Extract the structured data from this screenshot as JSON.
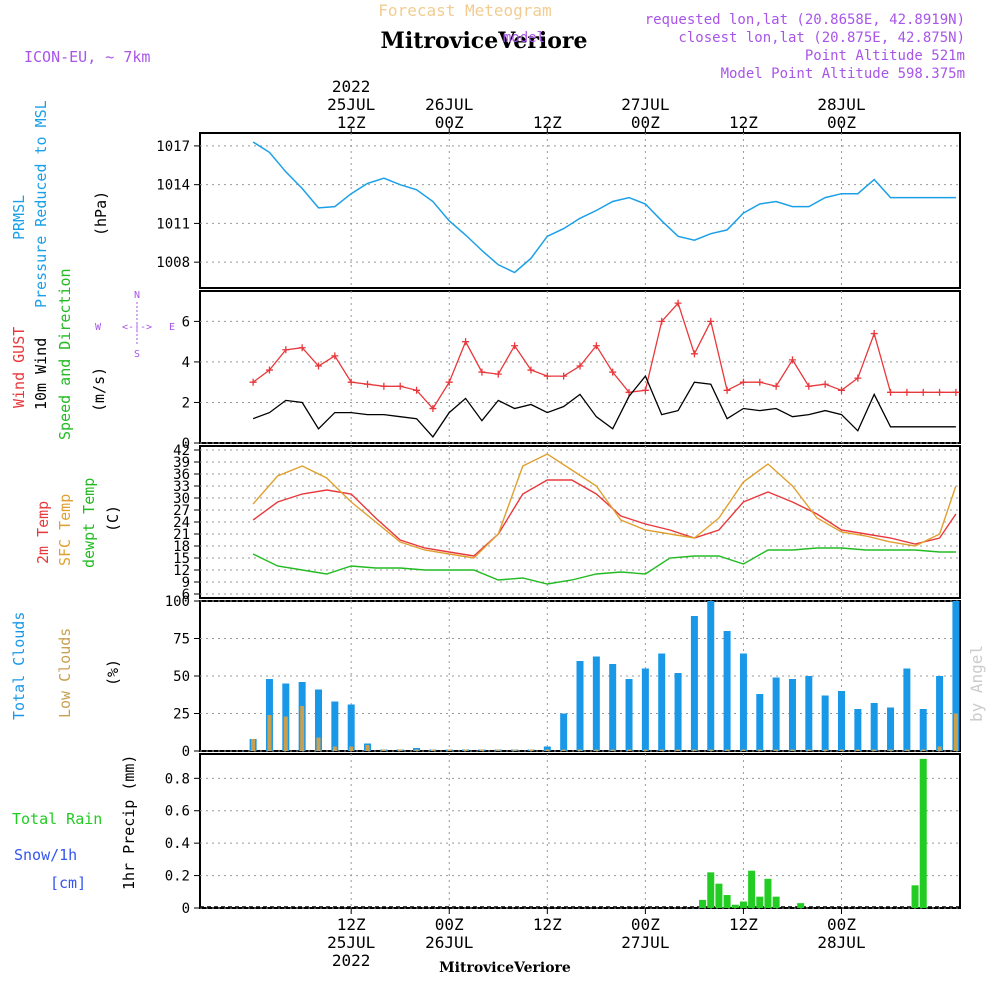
{
  "header": {
    "subtitle": "Forecast Meteogram",
    "location": "MitroviceVeriore",
    "model": "ICON-EU, ~ 7km",
    "requested": "requested lon,lat (20.8658E, 42.8919N)",
    "closest": "closest lon,lat (20.875E, 42.875N)",
    "closest_prefix": "model",
    "altitude": "Point Altitude 521m",
    "model_altitude": "Model Point Altitude 598.375m",
    "footer_location": "MitroviceVeriore",
    "watermark": "by Angel"
  },
  "colors": {
    "pressure": "#1aa0e8",
    "gust": "#e8383c",
    "wind": "#000000",
    "direction_label": "#22bb22",
    "temp2m": "#e8383c",
    "sfc": "#e0a030",
    "dewpt": "#22bb22",
    "cloud_total": "#1a98e8",
    "cloud_low": "#c8a050",
    "rain": "#22cc22",
    "snow": "#3355ee",
    "meta": "#a855e8"
  },
  "time_axis": {
    "top": [
      {
        "h": 12,
        "line1": "2022",
        "line2": "25JUL",
        "line3": "12Z"
      },
      {
        "h": 24,
        "line1": "",
        "line2": "26JUL",
        "line3": "00Z"
      },
      {
        "h": 36,
        "line1": "",
        "line2": "",
        "line3": "12Z"
      },
      {
        "h": 48,
        "line1": "",
        "line2": "27JUL",
        "line3": "00Z"
      },
      {
        "h": 60,
        "line1": "",
        "line2": "",
        "line3": "12Z"
      },
      {
        "h": 72,
        "line1": "",
        "line2": "28JUL",
        "line3": "00Z"
      }
    ],
    "bottom": [
      {
        "h": 12,
        "line1": "12Z",
        "line2": "25JUL",
        "line3": "2022"
      },
      {
        "h": 24,
        "line1": "00Z",
        "line2": "26JUL",
        "line3": ""
      },
      {
        "h": 36,
        "line1": "12Z",
        "line2": "",
        "line3": ""
      },
      {
        "h": 48,
        "line1": "00Z",
        "line2": "27JUL",
        "line3": ""
      },
      {
        "h": 60,
        "line1": "12Z",
        "line2": "",
        "line3": ""
      },
      {
        "h": 72,
        "line1": "00Z",
        "line2": "28JUL",
        "line3": ""
      }
    ]
  },
  "panels": {
    "pressure": {
      "label1": "PRMSL",
      "label2": "Pressure Reduced to MSL",
      "unit": "(hPa)"
    },
    "wind": {
      "label_gust": "Wind GUST",
      "label_wind": "10m Wind",
      "label_dir": "Speed and Direction",
      "unit": "(m/s)",
      "compass_n": "N",
      "compass_s": "S",
      "compass_w": "W",
      "compass_e": "E",
      "compass_h": "<-|->"
    },
    "temp": {
      "label_2m": "2m Temp",
      "label_sfc": "SFC Temp",
      "label_dew": "dewpt Temp",
      "unit": "(C)"
    },
    "clouds": {
      "label_total": "Total Clouds",
      "label_low": "Low Clouds",
      "unit": "(%)"
    },
    "precip": {
      "label_rain": "Total  Rain",
      "label_snow": "Snow/1h",
      "label_cm": "[cm]",
      "unit": "1hr Precip (mm)"
    }
  },
  "chart_data": [
    {
      "type": "line",
      "title": "PRMSL Pressure Reduced to MSL",
      "ylabel": "(hPa)",
      "ylim": [
        1006,
        1018
      ],
      "yticks": [
        1008,
        1011,
        1014,
        1017
      ],
      "x": [
        0,
        2,
        4,
        6,
        8,
        10,
        12,
        14,
        16,
        18,
        20,
        22,
        24,
        26,
        28,
        30,
        32,
        34,
        36,
        38,
        40,
        42,
        44,
        46,
        48,
        50,
        52,
        54,
        56,
        58,
        60,
        62,
        64,
        66,
        68,
        70,
        72,
        74,
        76,
        78,
        80,
        82,
        84,
        86
      ],
      "series": [
        {
          "name": "PRMSL",
          "values": [
            1017.3,
            1016.5,
            1015.0,
            1013.7,
            1012.2,
            1012.3,
            1013.3,
            1014.1,
            1014.5,
            1014.0,
            1013.6,
            1012.7,
            1011.2,
            1010.1,
            1008.9,
            1007.8,
            1007.2,
            1008.3,
            1010.0,
            1010.6,
            1011.4,
            1012.0,
            1012.7,
            1013.0,
            1012.5,
            1011.2,
            1010.0,
            1009.7,
            1010.2,
            1010.5,
            1011.8,
            1012.5,
            1012.7,
            1012.3,
            1012.3,
            1013.0,
            1013.3,
            1013.3,
            1014.4,
            1013.0,
            1013.0,
            1013.0,
            1013.0,
            1013.0
          ]
        }
      ]
    },
    {
      "type": "line",
      "title": "Wind GUST / 10m Wind Speed and Direction",
      "ylabel": "(m/s)",
      "ylim": [
        0,
        7.5
      ],
      "yticks": [
        0,
        2,
        4,
        6
      ],
      "x": [
        0,
        2,
        4,
        6,
        8,
        10,
        12,
        14,
        16,
        18,
        20,
        22,
        24,
        26,
        28,
        30,
        32,
        34,
        36,
        38,
        40,
        42,
        44,
        46,
        48,
        50,
        52,
        54,
        56,
        58,
        60,
        62,
        64,
        66,
        68,
        70,
        72,
        74,
        76,
        78,
        80,
        82,
        84,
        86
      ],
      "series": [
        {
          "name": "Wind GUST",
          "values": [
            3.0,
            3.6,
            4.6,
            4.7,
            3.8,
            4.3,
            3.0,
            2.9,
            2.8,
            2.8,
            2.6,
            1.7,
            3.0,
            5.0,
            3.5,
            3.4,
            4.8,
            3.6,
            3.3,
            3.3,
            3.8,
            4.8,
            3.5,
            2.5,
            2.6,
            6.0,
            6.9,
            4.4,
            6.0,
            2.6,
            3.0,
            3.0,
            2.8,
            4.1,
            2.8,
            2.9,
            2.6,
            3.2,
            5.4,
            2.5,
            2.5,
            2.5,
            2.5,
            2.5
          ]
        },
        {
          "name": "10m Wind",
          "values": [
            1.2,
            1.5,
            2.1,
            2.0,
            0.7,
            1.5,
            1.5,
            1.4,
            1.4,
            1.3,
            1.2,
            0.3,
            1.5,
            2.2,
            1.1,
            2.1,
            1.7,
            1.9,
            1.5,
            1.8,
            2.4,
            1.3,
            0.7,
            2.3,
            3.3,
            1.4,
            1.6,
            3.0,
            2.9,
            1.2,
            1.7,
            1.6,
            1.7,
            1.3,
            1.4,
            1.6,
            1.4,
            0.6,
            2.4,
            0.8,
            0.8,
            0.8,
            0.8,
            0.8
          ]
        }
      ]
    },
    {
      "type": "line",
      "title": "2m Temp / SFC Temp / dewpt Temp",
      "ylabel": "(C)",
      "ylim": [
        5,
        43
      ],
      "yticks": [
        6,
        9,
        12,
        15,
        18,
        21,
        24,
        27,
        30,
        33,
        36,
        39,
        42
      ],
      "x": [
        0,
        3,
        6,
        9,
        12,
        15,
        18,
        21,
        24,
        27,
        30,
        33,
        36,
        39,
        42,
        45,
        48,
        51,
        54,
        57,
        60,
        63,
        66,
        69,
        72,
        75,
        78,
        81,
        84,
        86
      ],
      "series": [
        {
          "name": "2m Temp",
          "values": [
            24.5,
            29,
            31,
            32,
            31,
            25,
            19.5,
            17.5,
            16.5,
            15.5,
            21,
            31,
            34.5,
            34.5,
            31,
            25.5,
            23.5,
            22,
            20,
            22,
            29,
            31.5,
            29,
            26,
            22,
            21,
            20,
            18.5,
            20,
            26
          ]
        },
        {
          "name": "SFC Temp",
          "values": [
            28.5,
            35.5,
            38,
            35,
            29,
            24,
            19,
            17,
            16,
            15,
            21,
            38,
            41,
            37,
            33,
            24.5,
            22,
            21,
            20,
            25,
            34,
            38.5,
            33,
            25,
            21.5,
            20.5,
            19,
            18,
            21,
            33
          ]
        },
        {
          "name": "dewpt Temp",
          "values": [
            16,
            13,
            12,
            11,
            13,
            12.5,
            12.5,
            12,
            12,
            12,
            9.5,
            10,
            8.5,
            9.5,
            11,
            11.5,
            11,
            15,
            15.5,
            15.5,
            13.5,
            17,
            17,
            17.5,
            17.5,
            17,
            17,
            17,
            16.5,
            16.5
          ]
        }
      ]
    },
    {
      "type": "bar",
      "title": "Total Clouds / Low Clouds",
      "ylabel": "(%)",
      "ylim": [
        0,
        100
      ],
      "yticks": [
        0,
        25,
        50,
        75,
        100
      ],
      "x": [
        0,
        2,
        4,
        6,
        8,
        10,
        12,
        14,
        16,
        18,
        20,
        22,
        24,
        26,
        28,
        30,
        32,
        34,
        36,
        38,
        40,
        42,
        44,
        46,
        48,
        50,
        52,
        54,
        56,
        58,
        60,
        62,
        64,
        66,
        68,
        70,
        72,
        74,
        76,
        78,
        80,
        82,
        84,
        86
      ],
      "series": [
        {
          "name": "Total Clouds",
          "values": [
            8,
            48,
            45,
            46,
            41,
            33,
            31,
            5,
            1,
            1,
            2,
            1,
            1,
            1,
            1,
            1,
            1,
            1,
            3,
            25,
            60,
            63,
            58,
            48,
            55,
            65,
            52,
            90,
            100,
            80,
            65,
            38,
            49,
            48,
            50,
            37,
            40,
            28,
            32,
            29,
            55,
            28,
            50,
            100
          ]
        },
        {
          "name": "Low Clouds",
          "values": [
            8,
            24,
            23,
            30,
            9,
            3,
            3,
            4,
            1,
            1,
            1,
            1,
            1,
            1,
            1,
            1,
            1,
            1,
            1,
            1,
            1,
            1,
            1,
            1,
            1,
            1,
            1,
            1,
            1,
            1,
            1,
            1,
            1,
            1,
            1,
            1,
            1,
            1,
            1,
            1,
            1,
            1,
            3,
            25
          ]
        }
      ]
    },
    {
      "type": "bar",
      "title": "1hr Precip",
      "ylabel": "1hr Precip (mm)",
      "ylim": [
        0,
        0.95
      ],
      "yticks": [
        0,
        0.2,
        0.4,
        0.6,
        0.8
      ],
      "x": [
        55,
        56,
        57,
        58,
        59,
        60,
        61,
        62,
        63,
        64,
        65,
        67,
        81,
        82
      ],
      "series": [
        {
          "name": "Total Rain",
          "values": [
            0.05,
            0.22,
            0.15,
            0.08,
            0.02,
            0.04,
            0.23,
            0.07,
            0.18,
            0.07,
            0.0,
            0.03,
            0.14,
            0.92
          ]
        }
      ]
    }
  ]
}
